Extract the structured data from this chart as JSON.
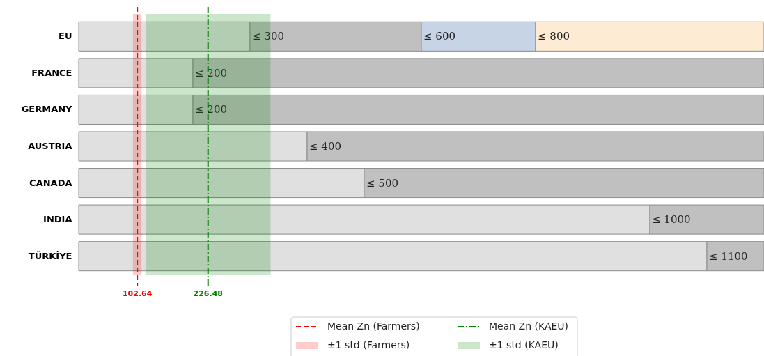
{
  "chart_data": {
    "type": "bar",
    "orientation": "horizontal",
    "stacked": true,
    "categories": [
      "EU",
      "FRANCE",
      "GERMANY",
      "AUSTRIA",
      "CANADA",
      "INDIA",
      "TÜRKİYE"
    ],
    "series": [
      {
        "color": "#e0e0e0",
        "values": [
          300,
          200,
          200,
          400,
          500,
          1000,
          1100
        ]
      },
      {
        "color": "#c0c0c0",
        "values": [
          300,
          1000,
          1000,
          800,
          700,
          200,
          100
        ],
        "value_labels": [
          "≤ 300",
          "≤ 200",
          "≤ 200",
          "≤ 400",
          "≤ 500",
          "≤ 1000",
          "≤ 1100"
        ]
      },
      {
        "color": "#c6d4e6",
        "values": [
          200,
          null,
          null,
          null,
          null,
          null,
          null
        ],
        "value_labels": [
          "≤ 600",
          null,
          null,
          null,
          null,
          null,
          null
        ]
      },
      {
        "color": "#fdebd3",
        "values": [
          400,
          null,
          null,
          null,
          null,
          null,
          null
        ],
        "value_labels": [
          "≤ 800",
          null,
          null,
          null,
          null,
          null,
          null
        ]
      }
    ],
    "xlim": [
      0,
      1200
    ],
    "tick_labels": "y",
    "legend": "bottom",
    "annotations": [
      "102.64",
      "226.48"
    ],
    "ref_lines": [
      {
        "axis": "x",
        "value": 102.64,
        "label": "Mean Zn (Farmers)",
        "color": "#ff0000",
        "line_style": "dashed"
      },
      {
        "axis": "x",
        "value": 226.48,
        "label": "Mean Zn (KAEU)",
        "color": "#008000",
        "line_style": "dashdot"
      }
    ],
    "bands": [
      {
        "axis": "x",
        "from": 95,
        "to": 110,
        "label": "±1 std (Farmers)",
        "color": "#ff0000"
      },
      {
        "axis": "x",
        "from": 117,
        "to": 336,
        "label": "±1 std (KAEU)",
        "color": "#008000"
      }
    ]
  }
}
